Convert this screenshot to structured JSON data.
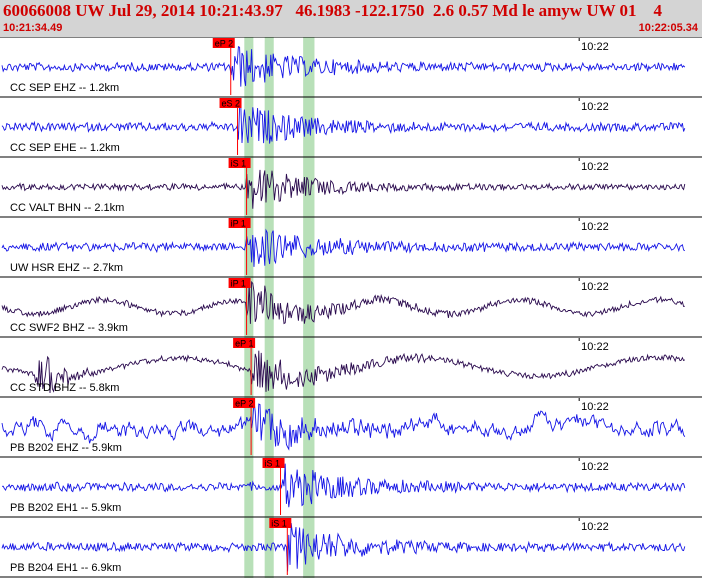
{
  "header": {
    "title": "60066008 UW Jul 29, 2014 10:21:43.97   46.1983 -122.1750  2.6 0.57 Md le amyw UW 01    4",
    "start_time": "10:21:34.49",
    "end_time": "10:22:05.34"
  },
  "colors": {
    "header_bg": "#d4d4d4",
    "header_text": "#d00000",
    "trace_blue": "#1515e6",
    "trace_purple": "#2a0a4e",
    "pick": "#ff0000",
    "band": "#b8e0b8",
    "divider": "#000000"
  },
  "chart_data": {
    "type": "seismogram",
    "x_range": [
      "10:21:34.49",
      "10:22:05.34"
    ],
    "time_tick_label": "10:22",
    "bands": [
      {
        "start": "10:21:45.2",
        "end": "10:21:45.6"
      },
      {
        "start": "10:21:46.1",
        "end": "10:21:46.5"
      },
      {
        "start": "10:21:47.8",
        "end": "10:21:48.3"
      }
    ],
    "traces": [
      {
        "label": "CC SEP EHZ -- 1.2km",
        "pick": "eP 2",
        "pick_time": "10:21:44.6",
        "color": "blue"
      },
      {
        "label": "CC SEP EHE -- 1.2km",
        "pick": "eS 2",
        "pick_time": "10:21:44.9",
        "color": "blue"
      },
      {
        "label": "CC VALT BHN -- 2.1km",
        "pick": "iS 1",
        "pick_time": "10:21:45.3",
        "color": "purple"
      },
      {
        "label": "UW HSR EHZ -- 2.7km",
        "pick": "iP 1",
        "pick_time": "10:21:45.3",
        "color": "blue"
      },
      {
        "label": "CC SWF2 BHZ -- 3.9km",
        "pick": "iP 1",
        "pick_time": "10:21:45.3",
        "color": "purple"
      },
      {
        "label": "CC STD BHZ -- 5.8km",
        "pick": "eP 1",
        "pick_time": "10:21:45.5",
        "color": "purple"
      },
      {
        "label": "PB B202 EHZ -- 5.9km",
        "pick": "eP 2",
        "pick_time": "10:21:45.5",
        "color": "blue"
      },
      {
        "label": "PB B202 EH1 -- 5.9km",
        "pick": "iS 1",
        "pick_time": "10:21:46.8",
        "color": "blue"
      },
      {
        "label": "PB B204 EH1 -- 6.9km",
        "pick": "iS 1",
        "pick_time": "10:21:47.1",
        "color": "blue"
      }
    ]
  }
}
